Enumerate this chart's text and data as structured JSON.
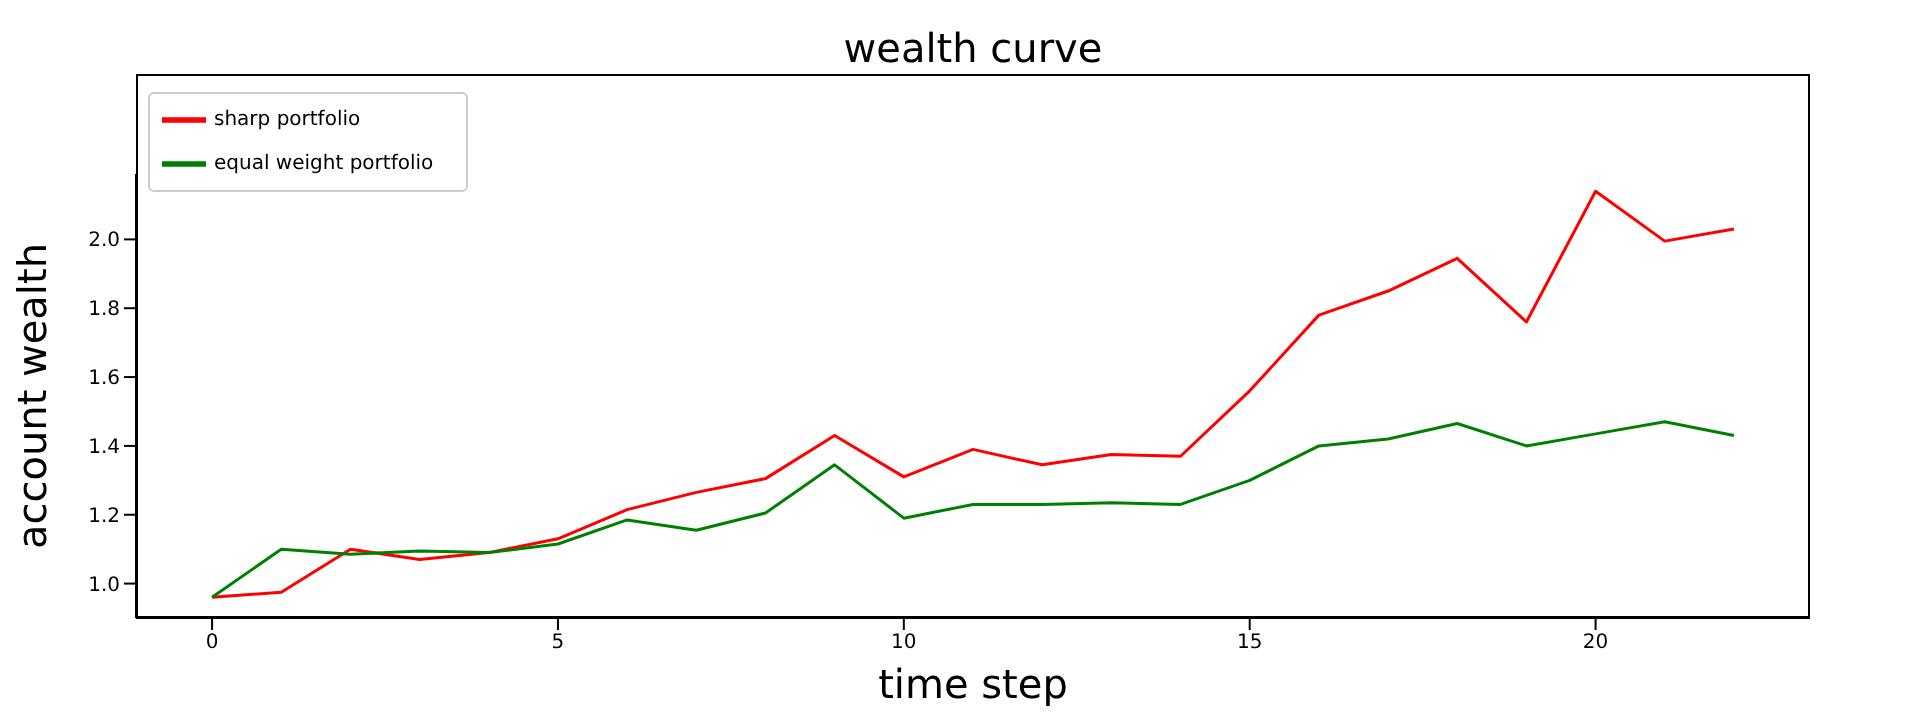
{
  "chart_data": {
    "type": "line",
    "title": "wealth curve",
    "xlabel": "time step",
    "ylabel": "account wealth",
    "x": [
      0,
      1,
      2,
      3,
      4,
      5,
      6,
      7,
      8,
      9,
      10,
      11,
      12,
      13,
      14,
      15,
      16,
      17,
      18,
      19,
      20,
      21,
      22
    ],
    "series": [
      {
        "name": "sharp portfolio",
        "color": "#ff0000",
        "values": [
          0.96,
          0.975,
          1.1,
          1.07,
          1.09,
          1.13,
          1.215,
          1.265,
          1.305,
          1.43,
          1.31,
          1.39,
          1.345,
          1.375,
          1.37,
          1.56,
          1.78,
          1.85,
          1.945,
          1.76,
          2.14,
          1.995,
          2.03
        ]
      },
      {
        "name": "equal weight portfolio",
        "color": "#008000",
        "values": [
          0.96,
          1.1,
          1.085,
          1.095,
          1.09,
          1.115,
          1.185,
          1.155,
          1.205,
          1.345,
          1.19,
          1.23,
          1.23,
          1.235,
          1.23,
          1.3,
          1.4,
          1.42,
          1.465,
          1.4,
          1.435,
          1.47,
          1.43
        ]
      }
    ],
    "xlim": [
      -1.1,
      23.1
    ],
    "xticks": [
      0,
      5,
      10,
      15,
      20
    ],
    "ylim": [
      0.9,
      2.19
    ],
    "yticks": [
      {
        "value": 1,
        "label": "1.0"
      },
      1.2,
      1.4,
      1.6,
      1.8,
      {
        "value": 2,
        "label": "2.0"
      }
    ],
    "grid": false,
    "legend": "top left",
    "marker": "none",
    "line_style": "solid"
  }
}
